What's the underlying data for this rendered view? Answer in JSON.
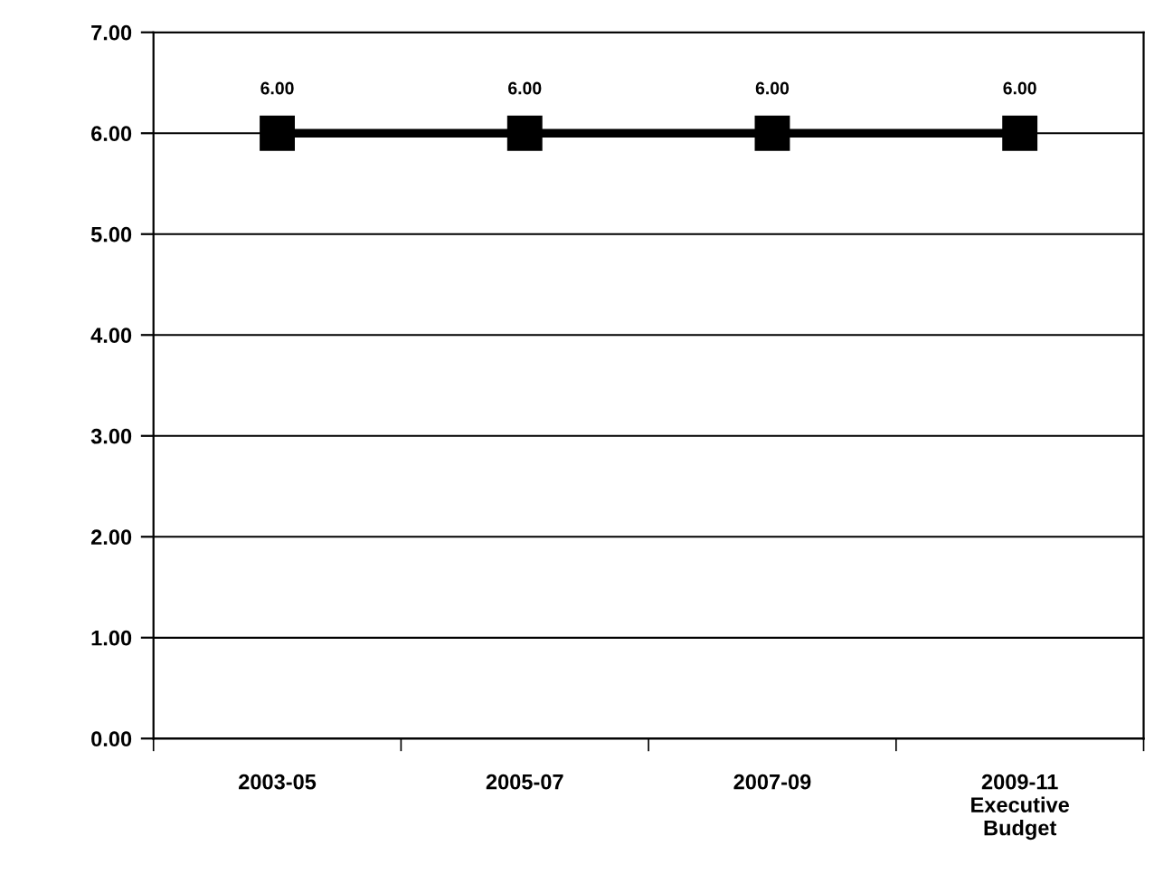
{
  "chart_data": {
    "type": "line",
    "categories": [
      "2003-05",
      "2005-07",
      "2007-09",
      "2009-11\nExecutive\nBudget"
    ],
    "series": [
      {
        "color": "#000000",
        "values": [
          6.0,
          6.0,
          6.0,
          6.0
        ]
      }
    ],
    "value_labels": [
      "6.00",
      "6.00",
      "6.00",
      "6.00"
    ],
    "ylim": [
      0,
      7
    ],
    "yticks": [
      {
        "value": 0,
        "label": "0.00"
      },
      {
        "value": 1,
        "label": "1.00"
      },
      {
        "value": 2,
        "label": "2.00"
      },
      {
        "value": 3,
        "label": "3.00"
      },
      {
        "value": 4,
        "label": "4.00"
      },
      {
        "value": 5,
        "label": "5.00"
      },
      {
        "value": 6,
        "label": "6.00"
      },
      {
        "value": 7,
        "label": "7.00"
      }
    ],
    "grid": "y",
    "marker": "square",
    "line_style": "solid",
    "legend": false
  }
}
